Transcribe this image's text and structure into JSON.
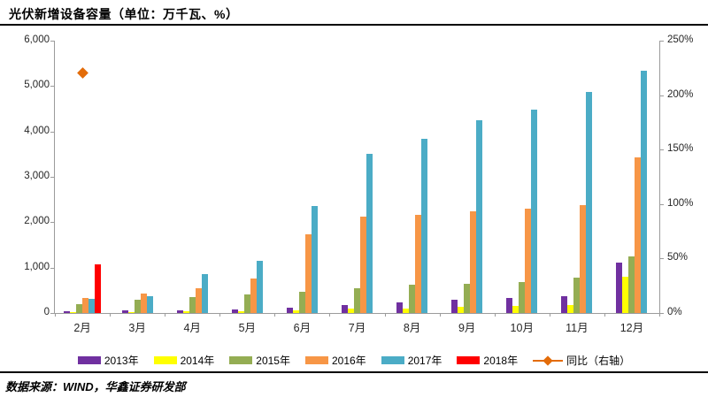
{
  "title": "光伏新增设备容量（单位：万千瓦、%）",
  "source": "数据来源：WIND，华鑫证券研发部",
  "chart_data": {
    "type": "bar",
    "title": "光伏新增设备容量（单位：万千瓦、%）",
    "categories": [
      "2月",
      "3月",
      "4月",
      "5月",
      "6月",
      "7月",
      "8月",
      "9月",
      "10月",
      "11月",
      "12月"
    ],
    "series": [
      {
        "name": "2013年",
        "color": "#7030A0",
        "values": [
          40,
          55,
          65,
          85,
          115,
          170,
          230,
          290,
          325,
          380,
          1110
        ]
      },
      {
        "name": "2014年",
        "color": "#FFFF00",
        "values": [
          20,
          20,
          30,
          35,
          65,
          90,
          105,
          145,
          160,
          180,
          800
        ]
      },
      {
        "name": "2015年",
        "color": "#94AD53",
        "values": [
          195,
          295,
          350,
          415,
          475,
          555,
          615,
          650,
          690,
          785,
          1255
        ]
      },
      {
        "name": "2016年",
        "color": "#F79646",
        "values": [
          330,
          430,
          550,
          765,
          1730,
          2120,
          2155,
          2240,
          2290,
          2385,
          3435
        ]
      },
      {
        "name": "2017年",
        "color": "#4BACC6",
        "values": [
          310,
          375,
          860,
          1140,
          2360,
          3510,
          3830,
          4250,
          4485,
          4870,
          5345
        ]
      },
      {
        "name": "2018年",
        "color": "#FF0000",
        "values": [
          1080,
          null,
          null,
          null,
          null,
          null,
          null,
          null,
          null,
          null,
          null
        ]
      }
    ],
    "line_series": {
      "name": "同比（右轴）",
      "color": "#E36C09",
      "marker": "diamond",
      "axis": "right",
      "values_pct": [
        220,
        null,
        null,
        null,
        null,
        null,
        null,
        null,
        null,
        null,
        null
      ]
    },
    "left_axis": {
      "min": 0,
      "max": 6000,
      "step": 1000,
      "ticks": [
        "6,000",
        "5,000",
        "4,000",
        "3,000",
        "2,000",
        "1,000",
        "0"
      ]
    },
    "right_axis": {
      "min": 0,
      "max": 250,
      "step": 50,
      "unit": "%",
      "ticks": [
        "250%",
        "200%",
        "150%",
        "100%",
        "50%",
        "0%"
      ]
    },
    "legend_position": "bottom",
    "grid": false
  }
}
